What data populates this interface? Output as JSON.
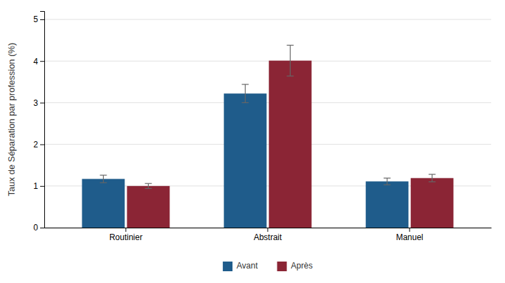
{
  "chart_data": {
    "type": "bar",
    "categories": [
      "Routinier",
      "Abstrait",
      "Manuel"
    ],
    "series": [
      {
        "name": "Avant",
        "color": "#1F5C8B",
        "values": [
          1.17,
          3.22,
          1.11
        ],
        "errors": [
          0.09,
          0.22,
          0.08
        ]
      },
      {
        "name": "Après",
        "color": "#8B2535",
        "values": [
          1.0,
          4.01,
          1.19
        ],
        "errors": [
          0.06,
          0.37,
          0.09
        ]
      }
    ],
    "ylabel": "Taux de Séparation par profession (%)",
    "ylim": [
      0,
      5.2
    ],
    "yticks": [
      0,
      1,
      2,
      3,
      4,
      5
    ],
    "grid": true,
    "legend": "bottom"
  }
}
